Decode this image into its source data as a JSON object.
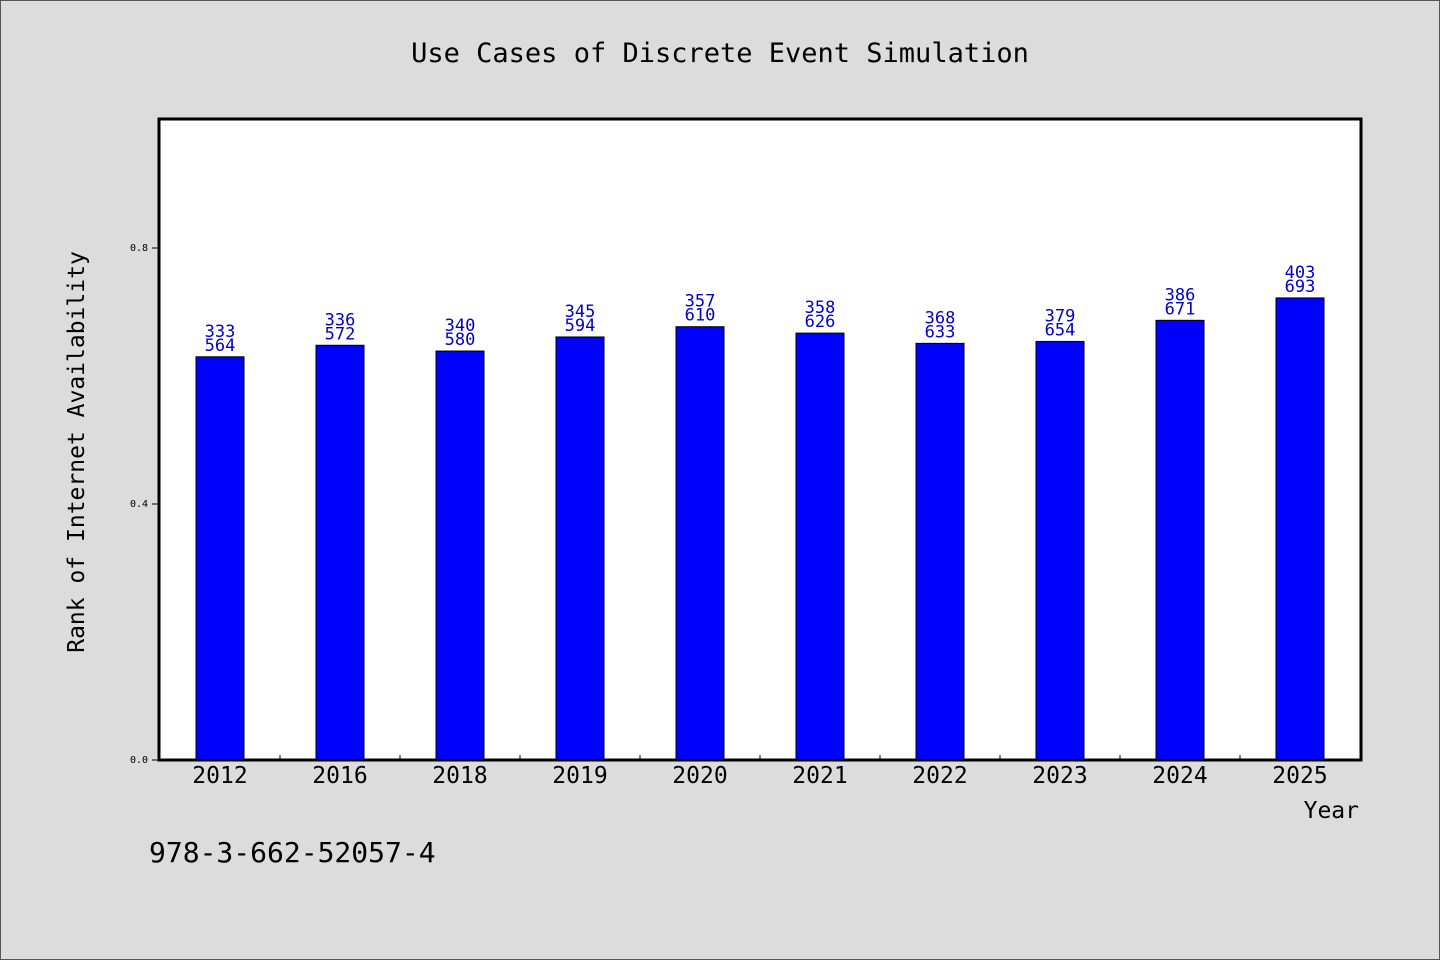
{
  "chart_data": {
    "type": "bar",
    "title": "Use Cases of Discrete Event Simulation",
    "xlabel": "Year",
    "ylabel": "Rank of Internet Availability",
    "categories": [
      "2012",
      "2016",
      "2018",
      "2019",
      "2020",
      "2021",
      "2022",
      "2023",
      "2024",
      "2025"
    ],
    "series": [
      {
        "values": [
          0.63,
          0.648,
          0.639,
          0.661,
          0.677,
          0.667,
          0.651,
          0.654,
          0.687,
          0.722
        ],
        "labels_top": [
          "333",
          "336",
          "340",
          "345",
          "357",
          "358",
          "368",
          "379",
          "386",
          "403"
        ],
        "labels_bottom": [
          "564",
          "572",
          "580",
          "594",
          "610",
          "626",
          "633",
          "654",
          "671",
          "693"
        ]
      }
    ],
    "yticks": [
      "0.0",
      "0.4",
      "0.8"
    ],
    "ylim": [
      0,
      1.0
    ],
    "grid": false,
    "colors": {
      "bar": "#0000ff",
      "label": "#0000cc",
      "plot_bg": "#ffffff",
      "page_bg": "#dcdcdc"
    }
  },
  "footer_text": "978-3-662-52057-4"
}
